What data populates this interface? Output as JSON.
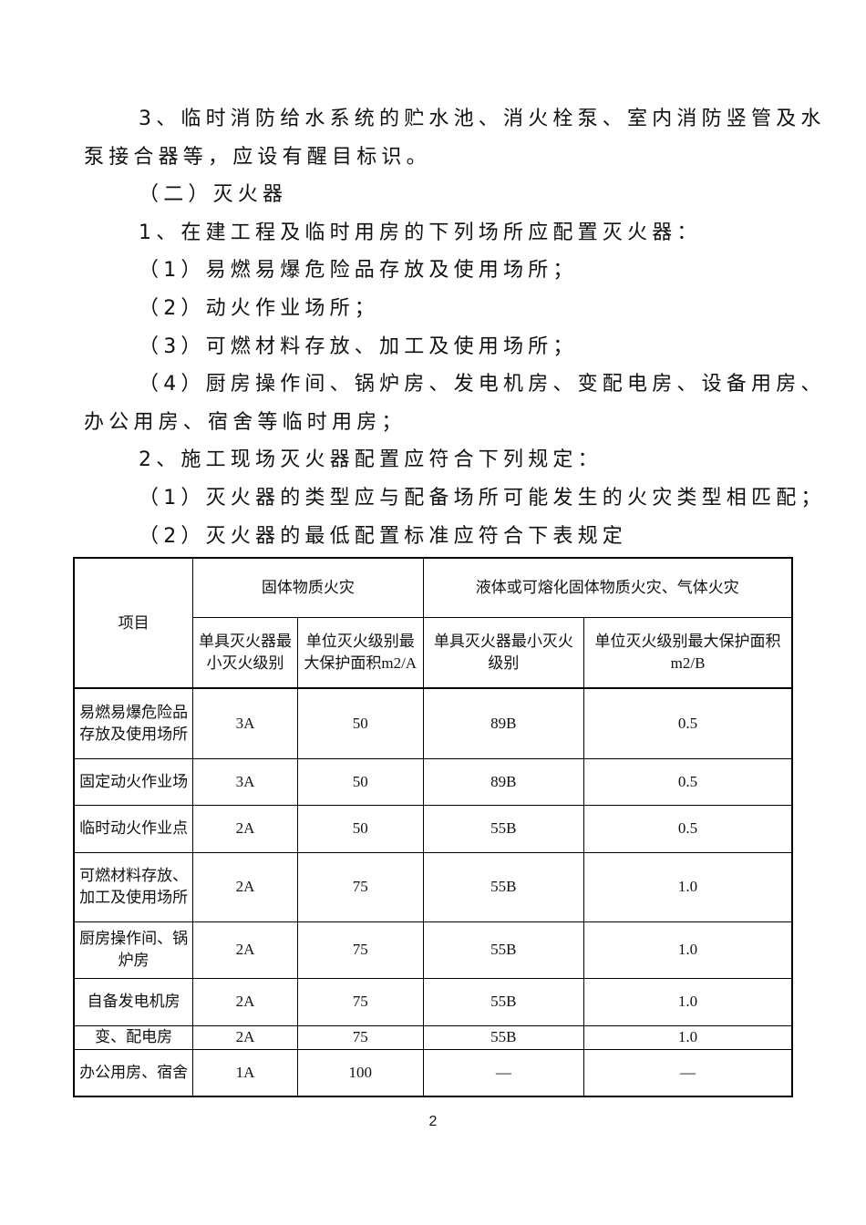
{
  "lines": [
    "3、临时消防给水系统的贮水池、消火栓泵、室内消防竖管及水",
    "泵接合器等，应设有醒目标识。",
    "（二）灭火器",
    "1、在建工程及临时用房的下列场所应配置灭火器：",
    "（1）易燃易爆危险品存放及使用场所；",
    "（2）动火作业场所；",
    "（3）可燃材料存放、加工及使用场所；",
    "（4）厨房操作间、锅炉房、发电机房、变配电房、设备用房、",
    "办公用房、宿舍等临时用房；",
    "2、施工现场灭火器配置应符合下列规定：",
    "（1）灭火器的类型应与配备场所可能发生的火灾类型相匹配；",
    "（2）灭火器的最低配置标准应符合下表规定"
  ],
  "table": {
    "item_header": "项目",
    "group1": "固体物质火灾",
    "group2": "液体或可熔化固体物质火灾、气体火灾",
    "sub": [
      "单具灭火器最小灭火级别",
      "单位灭火级别最大保护面积m2/A",
      "单具灭火器最小灭火级别",
      "单位灭火级别最大保护面积 m2/B"
    ],
    "rows": [
      [
        "易燃易爆危险品存放及使用场所",
        "3A",
        "50",
        "89B",
        "0.5"
      ],
      [
        "固定动火作业场",
        "3A",
        "50",
        "89B",
        "0.5"
      ],
      [
        "临时动火作业点",
        "2A",
        "50",
        "55B",
        "0.5"
      ],
      [
        "可燃材料存放、加工及使用场所",
        "2A",
        "75",
        "55B",
        "1.0"
      ],
      [
        "厨房操作间、锅炉房",
        "2A",
        "75",
        "55B",
        "1.0"
      ],
      [
        "自备发电机房",
        "2A",
        "75",
        "55B",
        "1.0"
      ],
      [
        "变、配电房",
        "2A",
        "75",
        "55B",
        "1.0"
      ],
      [
        "办公用房、宿舍",
        "1A",
        "100",
        "—",
        "—"
      ]
    ]
  },
  "page_number": "2"
}
